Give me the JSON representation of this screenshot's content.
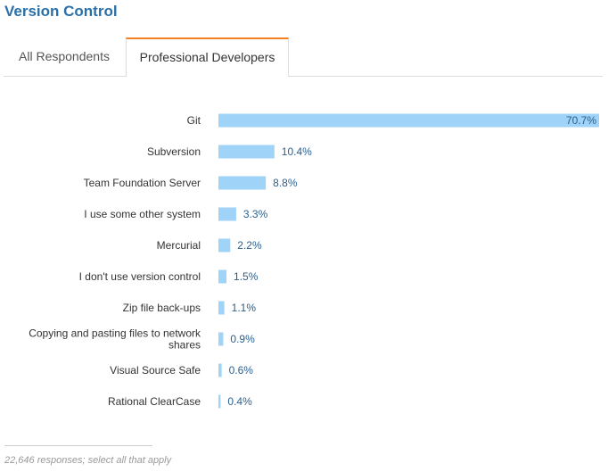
{
  "header": {
    "title": "Version Control"
  },
  "tabs": [
    {
      "label": "All Respondents",
      "active": false
    },
    {
      "label": "Professional Developers",
      "active": true
    }
  ],
  "colors": {
    "bar": "#9fd3f8",
    "title": "#2a6fa8",
    "active_tab_accent": "#f48024"
  },
  "chart_data": {
    "type": "bar",
    "orientation": "horizontal",
    "categories": [
      [
        "Git"
      ],
      [
        "Subversion"
      ],
      [
        "Team Foundation Server"
      ],
      [
        "I use some other system"
      ],
      [
        "Mercurial"
      ],
      [
        "I don't use version control"
      ],
      [
        "Zip file back-ups"
      ],
      [
        "Copying and pasting files to network",
        "shares"
      ],
      [
        "Visual Source Safe"
      ],
      [
        "Rational ClearCase"
      ]
    ],
    "values": [
      70.7,
      10.4,
      8.8,
      3.3,
      2.2,
      1.5,
      1.1,
      0.9,
      0.6,
      0.4
    ],
    "value_labels": [
      "70.7%",
      "10.4%",
      "8.8%",
      "3.3%",
      "2.2%",
      "1.5%",
      "1.1%",
      "0.9%",
      "0.6%",
      "0.4%"
    ],
    "xlim": [
      0,
      70.7
    ],
    "grid": false
  },
  "footer": {
    "note": "22,646 responses; select all that apply"
  }
}
